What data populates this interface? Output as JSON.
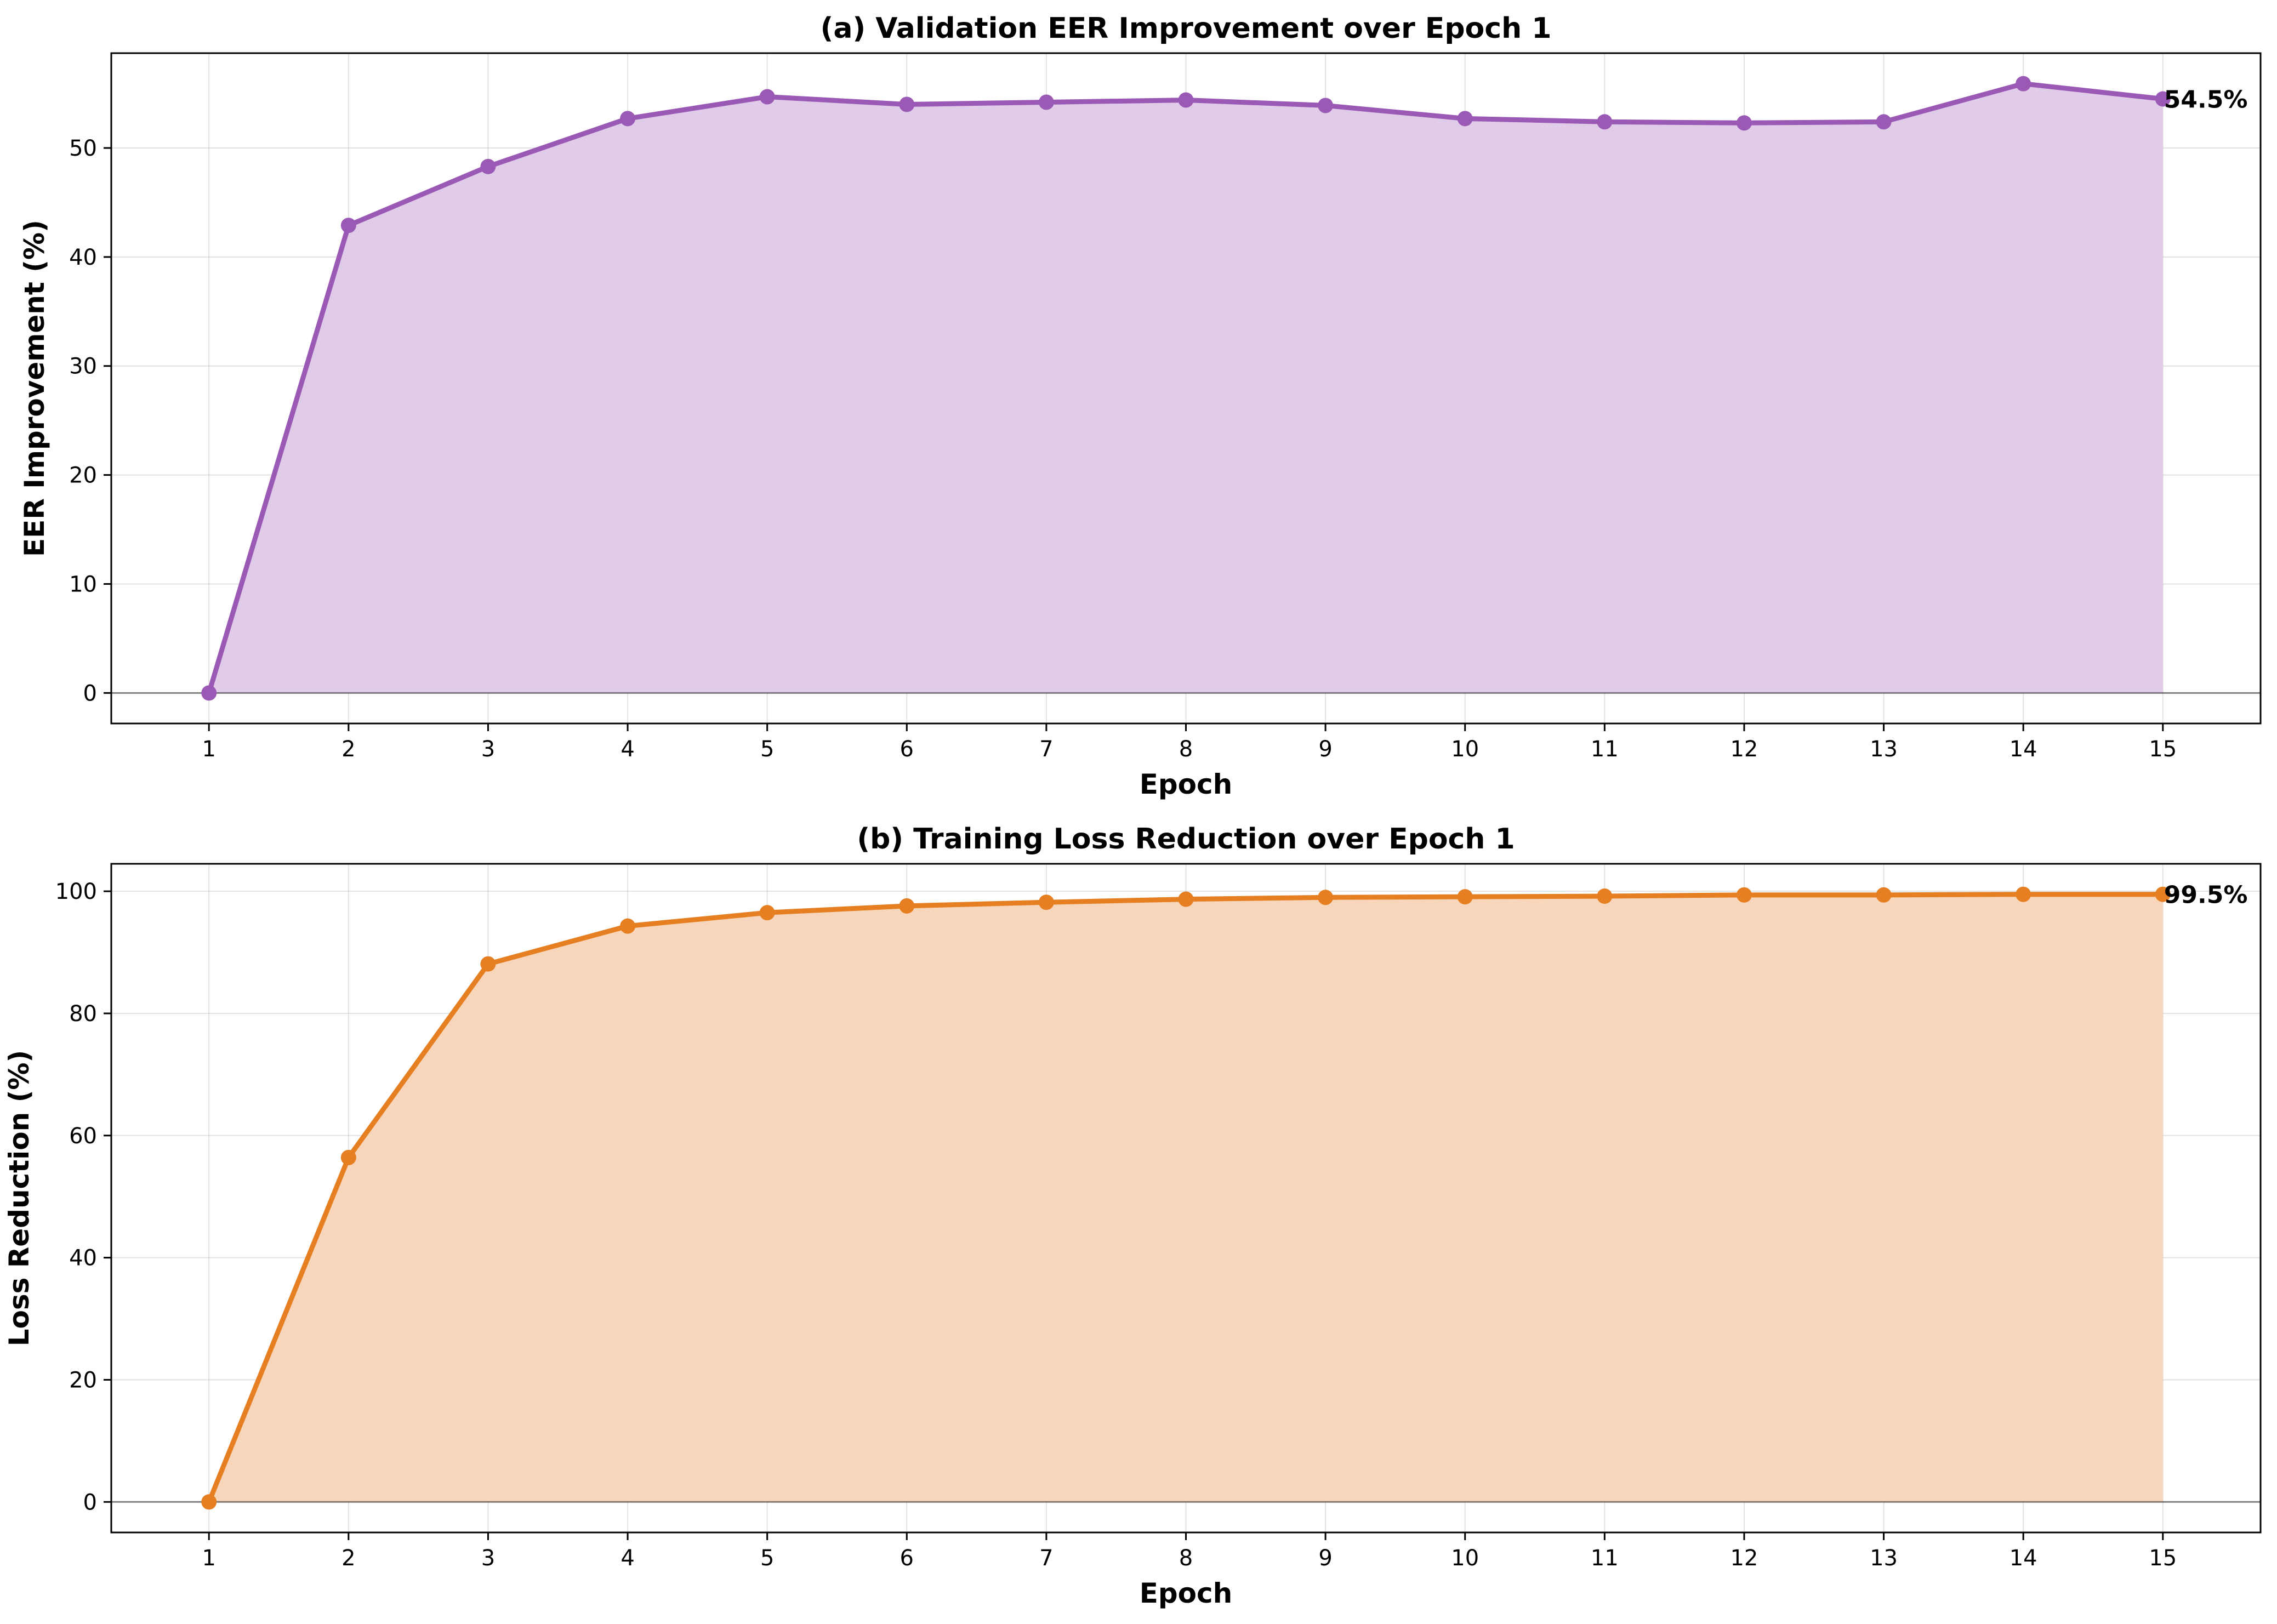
{
  "chart_data": [
    {
      "type": "area",
      "title": "(a) Validation EER Improvement over Epoch 1",
      "xlabel": "Epoch",
      "ylabel": "EER Improvement (%)",
      "x": [
        1,
        2,
        3,
        4,
        5,
        6,
        7,
        8,
        9,
        10,
        11,
        12,
        13,
        14,
        15
      ],
      "values": [
        0,
        42.9,
        48.3,
        52.7,
        54.7,
        54.0,
        54.2,
        54.4,
        53.9,
        52.7,
        52.4,
        52.3,
        52.4,
        55.9,
        54.5
      ],
      "xlim": [
        0.3,
        15.7
      ],
      "ylim": [
        -2.8,
        58.7
      ],
      "yticks": [
        0,
        10,
        20,
        30,
        40,
        50
      ],
      "end_label": "54.5%",
      "color": "#9b59b6",
      "fill_color": "#e0cbe8",
      "grid": true
    },
    {
      "type": "area",
      "title": "(b) Training Loss Reduction over Epoch 1",
      "xlabel": "Epoch",
      "ylabel": "Loss Reduction (%)",
      "x": [
        1,
        2,
        3,
        4,
        5,
        6,
        7,
        8,
        9,
        10,
        11,
        12,
        13,
        14,
        15
      ],
      "values": [
        0,
        56.4,
        88.1,
        94.3,
        96.5,
        97.6,
        98.2,
        98.7,
        99.0,
        99.1,
        99.2,
        99.4,
        99.4,
        99.5,
        99.5
      ],
      "xlim": [
        0.3,
        15.7
      ],
      "ylim": [
        -5.0,
        104.5
      ],
      "yticks": [
        0,
        20,
        40,
        60,
        80,
        100
      ],
      "end_label": "99.5%",
      "color": "#e67e22",
      "fill_color": "#f7d6bb",
      "grid": true
    }
  ]
}
